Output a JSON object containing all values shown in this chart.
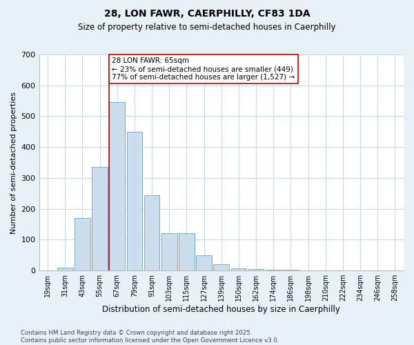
{
  "title": "28, LON FAWR, CAERPHILLY, CF83 1DA",
  "subtitle": "Size of property relative to semi-detached houses in Caerphilly",
  "xlabel": "Distribution of semi-detached houses by size in Caerphilly",
  "ylabel": "Number of semi-detached properties",
  "bar_labels": [
    "19sqm",
    "31sqm",
    "43sqm",
    "55sqm",
    "67sqm",
    "79sqm",
    "91sqm",
    "103sqm",
    "115sqm",
    "127sqm",
    "139sqm",
    "150sqm",
    "162sqm",
    "174sqm",
    "186sqm",
    "198sqm",
    "210sqm",
    "222sqm",
    "234sqm",
    "246sqm",
    "258sqm"
  ],
  "bar_values": [
    0,
    10,
    170,
    335,
    545,
    450,
    245,
    120,
    120,
    50,
    20,
    8,
    5,
    3,
    3,
    1,
    0,
    0,
    0,
    0,
    0
  ],
  "bar_color": "#ccdded",
  "bar_edge_color": "#7aaac8",
  "ref_line_color": "#cc0000",
  "ref_line_label": "28 LON FAWR: 65sqm",
  "annotation_smaller": "← 23% of semi-detached houses are smaller (449)",
  "annotation_larger": "77% of semi-detached houses are larger (1,527) →",
  "ylim": [
    0,
    700
  ],
  "yticks": [
    0,
    100,
    200,
    300,
    400,
    500,
    600,
    700
  ],
  "box_color": "#cc0000",
  "footnote": "Contains HM Land Registry data © Crown copyright and database right 2025.\nContains public sector information licensed under the Open Government Licence v3.0.",
  "bg_color": "#e8f0f8",
  "plot_bg_color": "#ffffff",
  "grid_color": "#c8d8e8"
}
